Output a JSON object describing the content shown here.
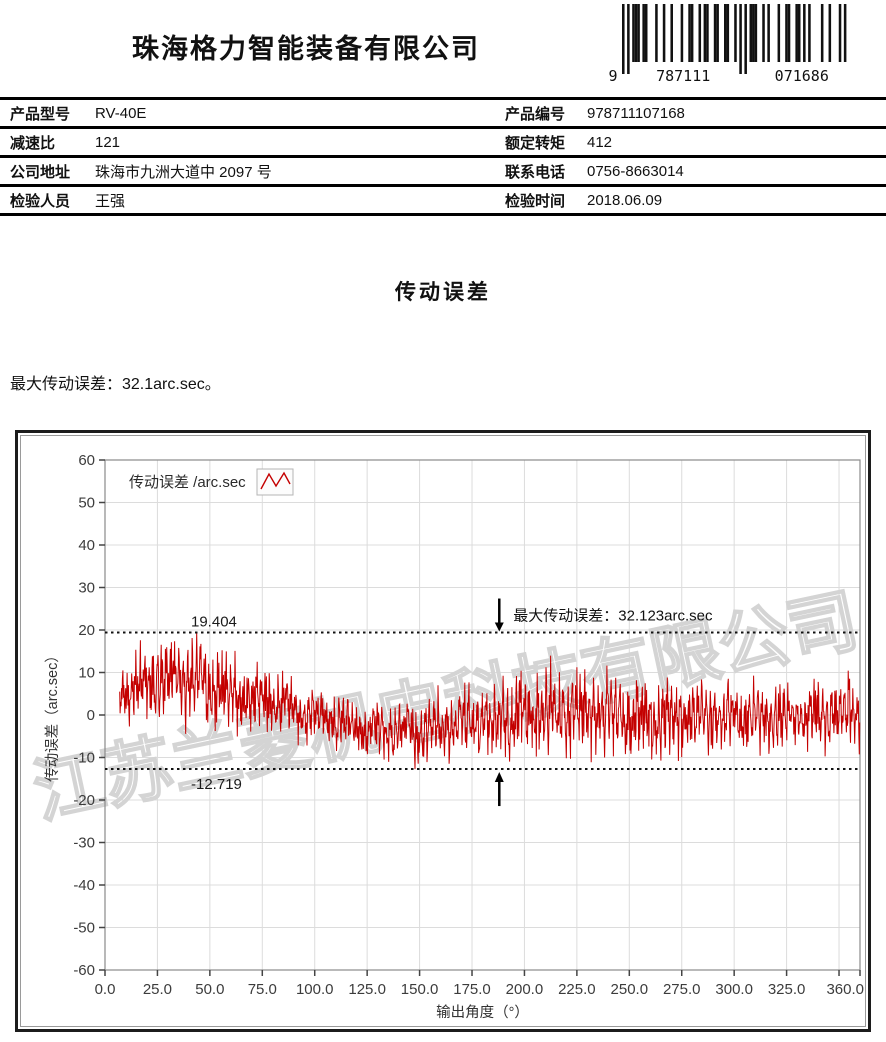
{
  "header": {
    "company_name": "珠海格力智能装备有限公司",
    "barcode": {
      "code": "9787111071686",
      "display_left_digit": "9",
      "display_group1": "787111",
      "display_group2": "071686"
    }
  },
  "info_table": {
    "rows": [
      {
        "l1": "产品型号",
        "v1": "RV-40E",
        "l2": "产品编号",
        "v2": "978711107168"
      },
      {
        "l1": "减速比",
        "v1": "121",
        "l2": "额定转矩",
        "v2": "412"
      },
      {
        "l1": "公司地址",
        "v1": "珠海市九洲大道中 2097 号",
        "l2": "联系电话",
        "v2": "0756-8663014"
      },
      {
        "l1": "检验人员",
        "v1": "王强",
        "l2": "检验时间",
        "v2": "2018.06.09"
      }
    ]
  },
  "section": {
    "title": "传动误差",
    "summary": "最大传动误差：32.1arc.sec。"
  },
  "chart_data": {
    "type": "line",
    "legend": "传动误差 /arc.sec",
    "xlabel": "输出角度（°）",
    "ylabel": "传动误差（arc.sec）",
    "xlim": [
      0,
      360
    ],
    "ylim": [
      -60,
      60
    ],
    "grid": true,
    "legend_position": "top-left-inside",
    "x_ticks": [
      {
        "v": 0,
        "label": "0.0"
      },
      {
        "v": 25,
        "label": "25.0"
      },
      {
        "v": 50,
        "label": "50.0"
      },
      {
        "v": 75,
        "label": "75.0"
      },
      {
        "v": 100,
        "label": "100.0"
      },
      {
        "v": 125,
        "label": "125.0"
      },
      {
        "v": 150,
        "label": "150.0"
      },
      {
        "v": 175,
        "label": "175.0"
      },
      {
        "v": 200,
        "label": "200.0"
      },
      {
        "v": 225,
        "label": "225.0"
      },
      {
        "v": 250,
        "label": "250.0"
      },
      {
        "v": 275,
        "label": "275.0"
      },
      {
        "v": 300,
        "label": "300.0"
      },
      {
        "v": 325,
        "label": "325.0"
      },
      {
        "v": 350,
        "label": ""
      },
      {
        "v": 360,
        "label": "360.0"
      }
    ],
    "y_ticks": [
      {
        "v": 60,
        "label": "60"
      },
      {
        "v": 50,
        "label": "50"
      },
      {
        "v": 40,
        "label": "40"
      },
      {
        "v": 30,
        "label": "30"
      },
      {
        "v": 20,
        "label": "20"
      },
      {
        "v": 10,
        "label": "10"
      },
      {
        "v": 0,
        "label": "0"
      },
      {
        "v": -10,
        "label": "-10"
      },
      {
        "v": -20,
        "label": "-20"
      },
      {
        "v": -30,
        "label": "-30"
      },
      {
        "v": -40,
        "label": "-40"
      },
      {
        "v": -50,
        "label": "-50"
      },
      {
        "v": -60,
        "label": "-60"
      }
    ],
    "max_line": {
      "value": 19.404,
      "label": "19.404"
    },
    "min_line": {
      "value": -12.719,
      "label": "-12.719"
    },
    "annotation": {
      "text": "最大传动误差：32.123arc.sec",
      "x": 188
    },
    "watermark": "江苏兰菱机电科技有限公司",
    "colors": {
      "signal": "#c40000",
      "grid": "#dcdcdc",
      "watermark": "#d4d4d4",
      "dotted": "#111111",
      "axis": "#444444",
      "tick_text": "#3c3c3c"
    },
    "series": [
      {
        "name": "传动误差",
        "color": "#c40000",
        "description": "dense high-frequency noisy transmission-error trace; peak 19.404 arc.sec near 45°, minimum -12.719 arc.sec near 188°, peak-to-peak 32.123 arc.sec",
        "seed": 20180609,
        "step": 0.22,
        "x_start": 7,
        "x_end": 360,
        "envelope": {
          "angles": [
            7,
            20,
            40,
            55,
            70,
            90,
            105,
            125,
            150,
            170,
            188,
            205,
            230,
            250,
            270,
            300,
            330,
            360
          ],
          "mean": [
            5,
            7,
            7.5,
            6,
            4,
            2.5,
            0.5,
            -1.5,
            -2,
            -0.5,
            0,
            1.5,
            2,
            0.5,
            0,
            0.5,
            0.5,
            1.5
          ],
          "amp": [
            6,
            9,
            10,
            9,
            8,
            7.5,
            6,
            6.5,
            7.5,
            8.5,
            10,
            10,
            10,
            9.5,
            9,
            8.5,
            8.5,
            9
          ]
        }
      }
    ]
  }
}
